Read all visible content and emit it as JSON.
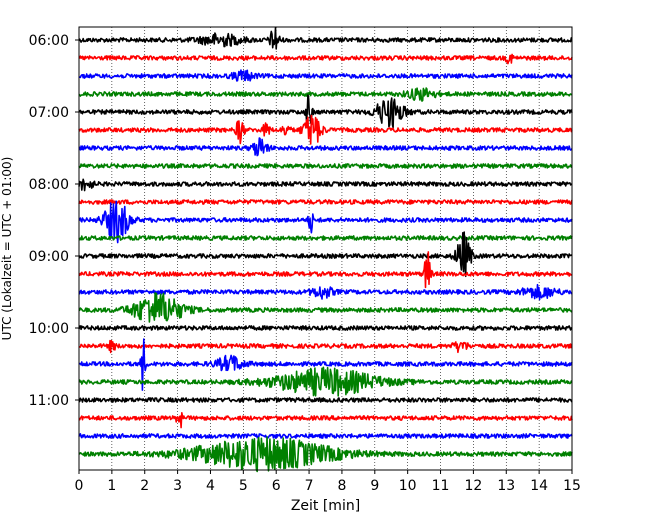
{
  "chart_data": {
    "type": "line",
    "title": "",
    "xlabel": "Zeit  [min]",
    "ylabel": "UTC (Lokalzeit = UTC + 01:00)",
    "xlim": [
      0,
      15
    ],
    "x_ticks": [
      "0",
      "1",
      "2",
      "3",
      "4",
      "5",
      "6",
      "7",
      "8",
      "9",
      "10",
      "11",
      "12",
      "13",
      "14",
      "15"
    ],
    "y_ticks": [
      "06:00",
      "07:00",
      "08:00",
      "09:00",
      "10:00",
      "11:00"
    ],
    "grid": "vertical dotted",
    "legend": "none",
    "series_colors": [
      "#000000",
      "#ff0000",
      "#0000ff",
      "#008000"
    ],
    "traces": [
      {
        "label": "06:00",
        "color": "#000000",
        "events": [
          {
            "t": 4.3,
            "amp": 0.35,
            "dur": 0.6
          },
          {
            "t": 5.95,
            "amp": 0.9,
            "dur": 0.12
          }
        ]
      },
      {
        "label": "06:15",
        "color": "#ff0000",
        "events": [
          {
            "t": 13.1,
            "amp": 0.3,
            "dur": 0.1
          }
        ]
      },
      {
        "label": "06:30",
        "color": "#0000ff",
        "events": [
          {
            "t": 5.0,
            "amp": 0.3,
            "dur": 0.3
          }
        ]
      },
      {
        "label": "06:45",
        "color": "#008000",
        "events": [
          {
            "t": 10.4,
            "amp": 0.35,
            "dur": 0.4
          }
        ]
      },
      {
        "label": "07:00",
        "color": "#000000",
        "events": [
          {
            "t": 7.0,
            "amp": 1.2,
            "dur": 0.08
          },
          {
            "t": 9.45,
            "amp": 0.9,
            "dur": 0.4
          }
        ]
      },
      {
        "label": "07:15",
        "color": "#ff0000",
        "events": [
          {
            "t": 4.9,
            "amp": 0.9,
            "dur": 0.1
          },
          {
            "t": 5.7,
            "amp": 0.4,
            "dur": 0.1
          },
          {
            "t": 6.3,
            "amp": 0.4,
            "dur": 0.1
          },
          {
            "t": 7.1,
            "amp": 1.0,
            "dur": 0.25
          }
        ]
      },
      {
        "label": "07:30",
        "color": "#0000ff",
        "events": [
          {
            "t": 5.5,
            "amp": 0.6,
            "dur": 0.2
          }
        ]
      },
      {
        "label": "07:45",
        "color": "#008000",
        "events": []
      },
      {
        "label": "08:00",
        "color": "#000000",
        "events": [
          {
            "t": 0.2,
            "amp": 0.35,
            "dur": 0.2
          }
        ]
      },
      {
        "label": "08:15",
        "color": "#ff0000",
        "events": []
      },
      {
        "label": "08:30",
        "color": "#0000ff",
        "events": [
          {
            "t": 1.15,
            "amp": 1.3,
            "dur": 0.35
          },
          {
            "t": 7.05,
            "amp": 0.9,
            "dur": 0.06
          }
        ]
      },
      {
        "label": "08:45",
        "color": "#008000",
        "events": []
      },
      {
        "label": "09:00",
        "color": "#000000",
        "events": [
          {
            "t": 11.7,
            "amp": 1.4,
            "dur": 0.2
          }
        ]
      },
      {
        "label": "09:15",
        "color": "#ff0000",
        "events": [
          {
            "t": 10.6,
            "amp": 1.7,
            "dur": 0.08
          }
        ]
      },
      {
        "label": "09:30",
        "color": "#0000ff",
        "events": [
          {
            "t": 7.4,
            "amp": 0.35,
            "dur": 0.3
          },
          {
            "t": 14.0,
            "amp": 0.35,
            "dur": 0.5
          }
        ]
      },
      {
        "label": "09:45",
        "color": "#008000",
        "events": [
          {
            "t": 2.4,
            "amp": 1.0,
            "dur": 0.7
          }
        ]
      },
      {
        "label": "10:00",
        "color": "#000000",
        "events": []
      },
      {
        "label": "10:15",
        "color": "#ff0000",
        "events": [
          {
            "t": 1.0,
            "amp": 0.3,
            "dur": 0.1
          },
          {
            "t": 11.6,
            "amp": 0.3,
            "dur": 0.2
          }
        ]
      },
      {
        "label": "10:30",
        "color": "#0000ff",
        "events": [
          {
            "t": 1.95,
            "amp": 1.8,
            "dur": 0.06
          },
          {
            "t": 4.6,
            "amp": 0.45,
            "dur": 0.4
          }
        ]
      },
      {
        "label": "10:45",
        "color": "#008000",
        "events": [
          {
            "t": 7.5,
            "amp": 0.8,
            "dur": 1.5
          }
        ]
      },
      {
        "label": "11:00",
        "color": "#000000",
        "events": []
      },
      {
        "label": "11:15",
        "color": "#ff0000",
        "events": [
          {
            "t": 3.05,
            "amp": 1.2,
            "dur": 0.06
          }
        ]
      },
      {
        "label": "11:30",
        "color": "#0000ff",
        "events": []
      },
      {
        "label": "11:45",
        "color": "#008000",
        "events": [
          {
            "t": 5.6,
            "amp": 1.0,
            "dur": 2.0
          }
        ]
      }
    ]
  }
}
